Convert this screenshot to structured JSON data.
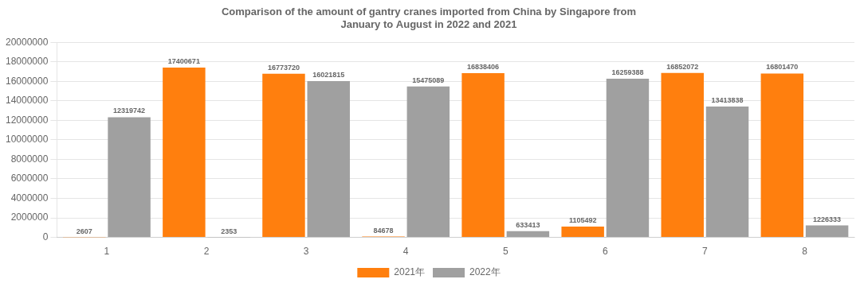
{
  "chart_data": {
    "type": "bar",
    "title": "Comparison of the amount of gantry cranes imported from China by Singapore from\nJanuary to August in 2022 and 2021",
    "categories": [
      "1",
      "2",
      "3",
      "4",
      "5",
      "6",
      "7",
      "8"
    ],
    "series": [
      {
        "name": "2021年",
        "color": "#FF7F0E",
        "values": [
          2607,
          17400671,
          16773720,
          84678,
          16838406,
          1105492,
          16852072,
          16801470
        ]
      },
      {
        "name": "2022年",
        "color": "#A0A0A0",
        "values": [
          12319742,
          2353,
          16021815,
          15475089,
          633413,
          16259388,
          13413838,
          1226333
        ]
      }
    ],
    "ylim": [
      0,
      20000000
    ],
    "yticks": [
      0,
      2000000,
      4000000,
      6000000,
      8000000,
      10000000,
      12000000,
      14000000,
      16000000,
      18000000,
      20000000
    ],
    "grid": true,
    "legend": "bottom",
    "data_labels": true
  }
}
